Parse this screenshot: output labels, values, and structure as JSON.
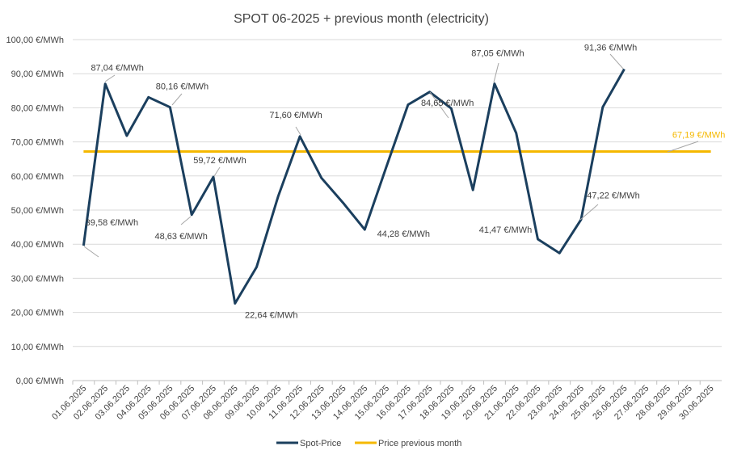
{
  "chart_data": {
    "type": "line",
    "title": "SPOT 06-2025 + previous month (electricity)",
    "xlabel": "",
    "ylabel": "",
    "ylim": [
      0,
      100
    ],
    "yticks": [
      "0,00 €/MWh",
      "10,00 €/MWh",
      "20,00 €/MWh",
      "30,00 €/MWh",
      "40,00 €/MWh",
      "50,00 €/MWh",
      "60,00 €/MWh",
      "70,00 €/MWh",
      "80,00 €/MWh",
      "90,00 €/MWh",
      "100,00 €/MWh"
    ],
    "grid": true,
    "legend_position": "bottom",
    "categories": [
      "01.06.2025",
      "02.06.2025",
      "03.06.2025",
      "04.06.2025",
      "05.06.2025",
      "06.06.2025",
      "07.06.2025",
      "08.06.2025",
      "09.06.2025",
      "10.06.2025",
      "11.06.2025",
      "12.06.2025",
      "13.06.2025",
      "14.06.2025",
      "15.06.2025",
      "16.06.2025",
      "17.06.2025",
      "18.06.2025",
      "19.06.2025",
      "20.06.2025",
      "21.06.2025",
      "22.06.2025",
      "23.06.2025",
      "24.06.2025",
      "25.06.2025",
      "26.06.2025",
      "27.06.2025",
      "28.06.2025",
      "29.06.2025",
      "30.06.2025"
    ],
    "series": [
      {
        "name": "Spot-Price",
        "color": "#1B3F5E",
        "values": [
          39.58,
          87.04,
          71.8,
          83.1,
          80.16,
          48.63,
          59.72,
          22.64,
          33.3,
          54.1,
          71.6,
          59.4,
          52.1,
          44.28,
          62.7,
          80.9,
          84.65,
          79.8,
          55.9,
          87.05,
          72.6,
          41.47,
          37.4,
          47.22,
          80.2,
          91.36,
          null,
          null,
          null,
          null
        ],
        "data_labels": [
          {
            "index": 0,
            "text": "39,58 €/MWh"
          },
          {
            "index": 1,
            "text": "87,04 €/MWh"
          },
          {
            "index": 4,
            "text": "80,16 €/MWh"
          },
          {
            "index": 5,
            "text": "48,63 €/MWh"
          },
          {
            "index": 6,
            "text": "59,72 €/MWh"
          },
          {
            "index": 7,
            "text": "22,64 €/MWh"
          },
          {
            "index": 10,
            "text": "71,60 €/MWh"
          },
          {
            "index": 13,
            "text": "44,28 €/MWh"
          },
          {
            "index": 16,
            "text": "84,65 €/MWh"
          },
          {
            "index": 19,
            "text": "87,05 €/MWh"
          },
          {
            "index": 21,
            "text": "41,47 €/MWh"
          },
          {
            "index": 23,
            "text": "47,22 €/MWh"
          },
          {
            "index": 25,
            "text": "91,36 €/MWh"
          }
        ]
      },
      {
        "name": "Price previous month",
        "color": "#F5B800",
        "values": [
          67.19,
          67.19,
          67.19,
          67.19,
          67.19,
          67.19,
          67.19,
          67.19,
          67.19,
          67.19,
          67.19,
          67.19,
          67.19,
          67.19,
          67.19,
          67.19,
          67.19,
          67.19,
          67.19,
          67.19,
          67.19,
          67.19,
          67.19,
          67.19,
          67.19,
          67.19,
          67.19,
          67.19,
          67.19,
          67.19
        ],
        "data_labels": [
          {
            "index": 29,
            "text": "67,19 €/MWh"
          }
        ]
      }
    ]
  }
}
